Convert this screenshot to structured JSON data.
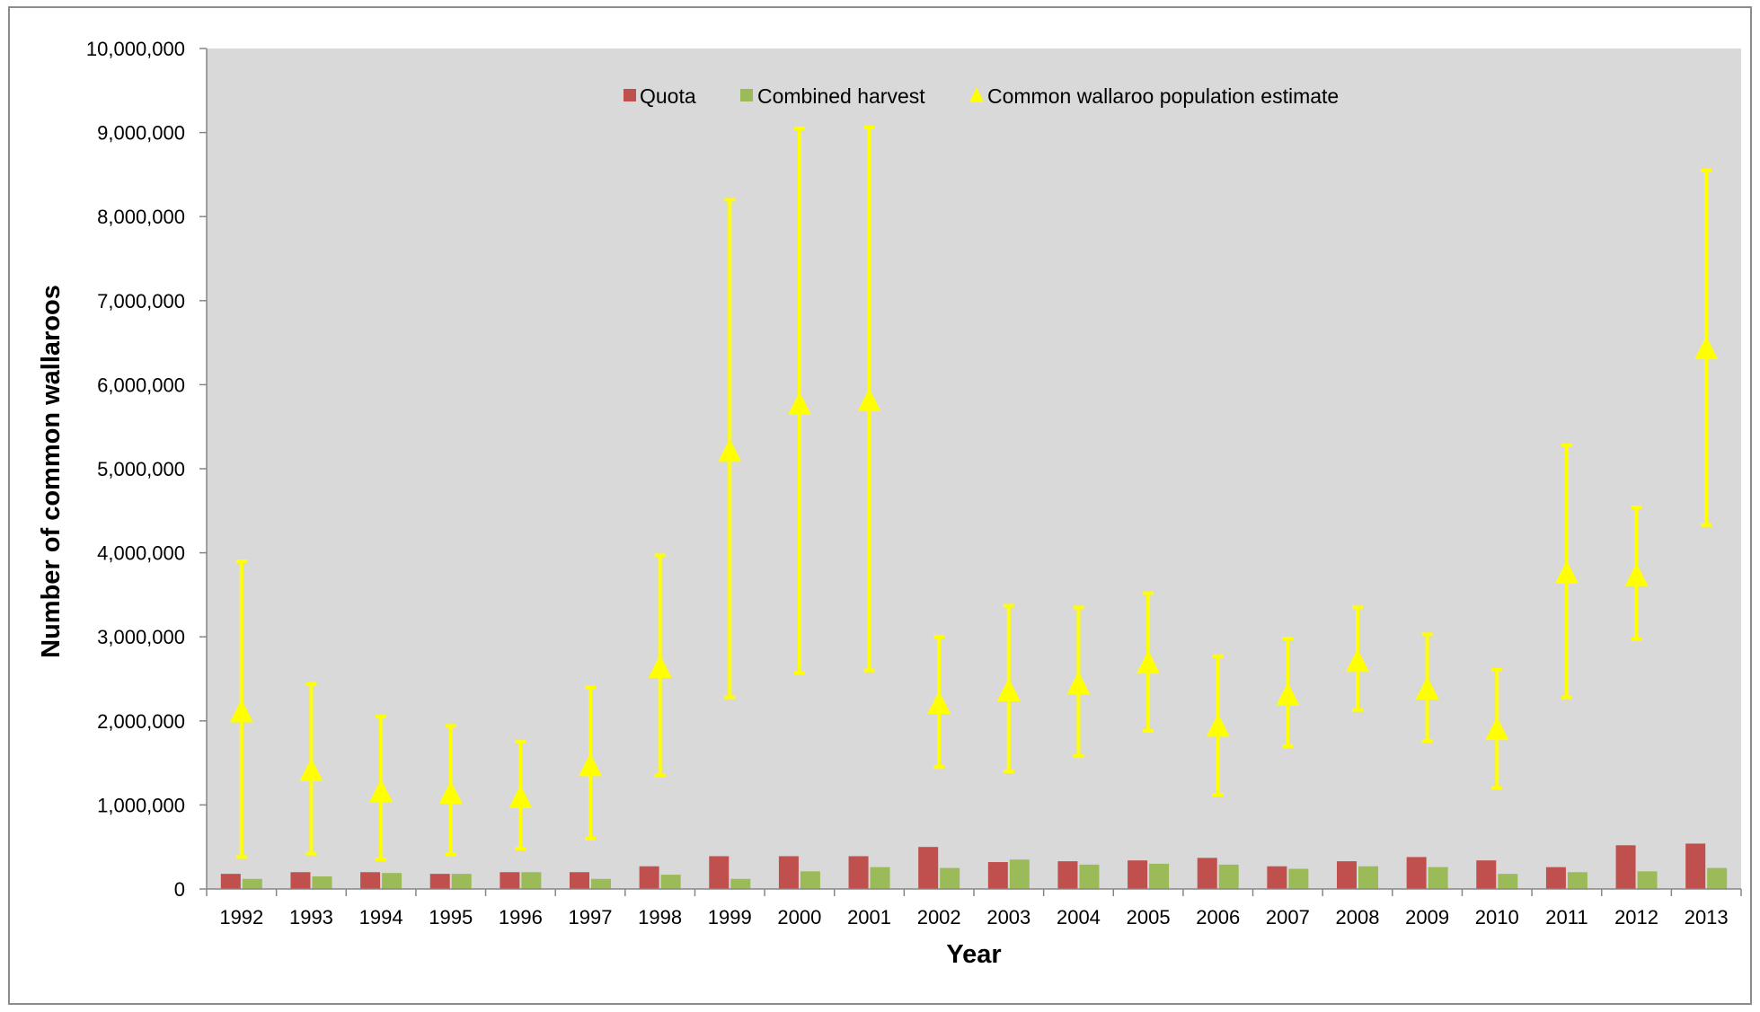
{
  "chart_data": {
    "type": "bar",
    "title": "",
    "xlabel": "Year",
    "ylabel": "Number of common wallaroos",
    "ylim": [
      0,
      10000000
    ],
    "y_ticks": [
      "0",
      "1,000,000",
      "2,000,000",
      "3,000,000",
      "4,000,000",
      "5,000,000",
      "6,000,000",
      "7,000,000",
      "8,000,000",
      "9,000,000",
      "10,000,000"
    ],
    "categories": [
      "1992",
      "1993",
      "1994",
      "1995",
      "1996",
      "1997",
      "1998",
      "1999",
      "2000",
      "2001",
      "2002",
      "2003",
      "2004",
      "2005",
      "2006",
      "2007",
      "2008",
      "2009",
      "2010",
      "2011",
      "2012",
      "2013"
    ],
    "legend_position": "top-center",
    "grid": false,
    "background_color": "#d9d9d9",
    "series": [
      {
        "name": "Quota",
        "kind": "bar",
        "color": "#c0504d",
        "values": [
          180000,
          200000,
          200000,
          180000,
          200000,
          200000,
          270000,
          390000,
          390000,
          390000,
          500000,
          320000,
          330000,
          340000,
          370000,
          270000,
          330000,
          380000,
          340000,
          260000,
          520000,
          540000
        ]
      },
      {
        "name": "Combined harvest",
        "kind": "bar",
        "color": "#9bbb59",
        "values": [
          120000,
          150000,
          190000,
          180000,
          200000,
          120000,
          170000,
          120000,
          210000,
          260000,
          250000,
          350000,
          290000,
          300000,
          290000,
          240000,
          270000,
          260000,
          180000,
          200000,
          210000,
          250000
        ]
      },
      {
        "name": "Common wallaroo population estimate",
        "kind": "scatter",
        "marker": "triangle",
        "color": "#ffff00",
        "values": [
          2100000,
          1400000,
          1150000,
          1130000,
          1080000,
          1460000,
          2630000,
          5200000,
          5760000,
          5800000,
          2200000,
          2350000,
          2430000,
          2680000,
          1930000,
          2300000,
          2700000,
          2370000,
          1890000,
          3750000,
          3720000,
          6420000
        ],
        "error_low": [
          380000,
          420000,
          350000,
          410000,
          480000,
          600000,
          1350000,
          2280000,
          2570000,
          2600000,
          1450000,
          1400000,
          1580000,
          1880000,
          1120000,
          1700000,
          2130000,
          1760000,
          1200000,
          2280000,
          2970000,
          4330000
        ],
        "error_high": [
          3900000,
          2440000,
          2050000,
          1940000,
          1750000,
          2400000,
          3970000,
          8200000,
          9050000,
          9060000,
          3000000,
          3370000,
          3350000,
          3520000,
          2770000,
          2980000,
          3350000,
          3030000,
          2610000,
          5280000,
          4540000,
          8550000
        ]
      }
    ]
  }
}
